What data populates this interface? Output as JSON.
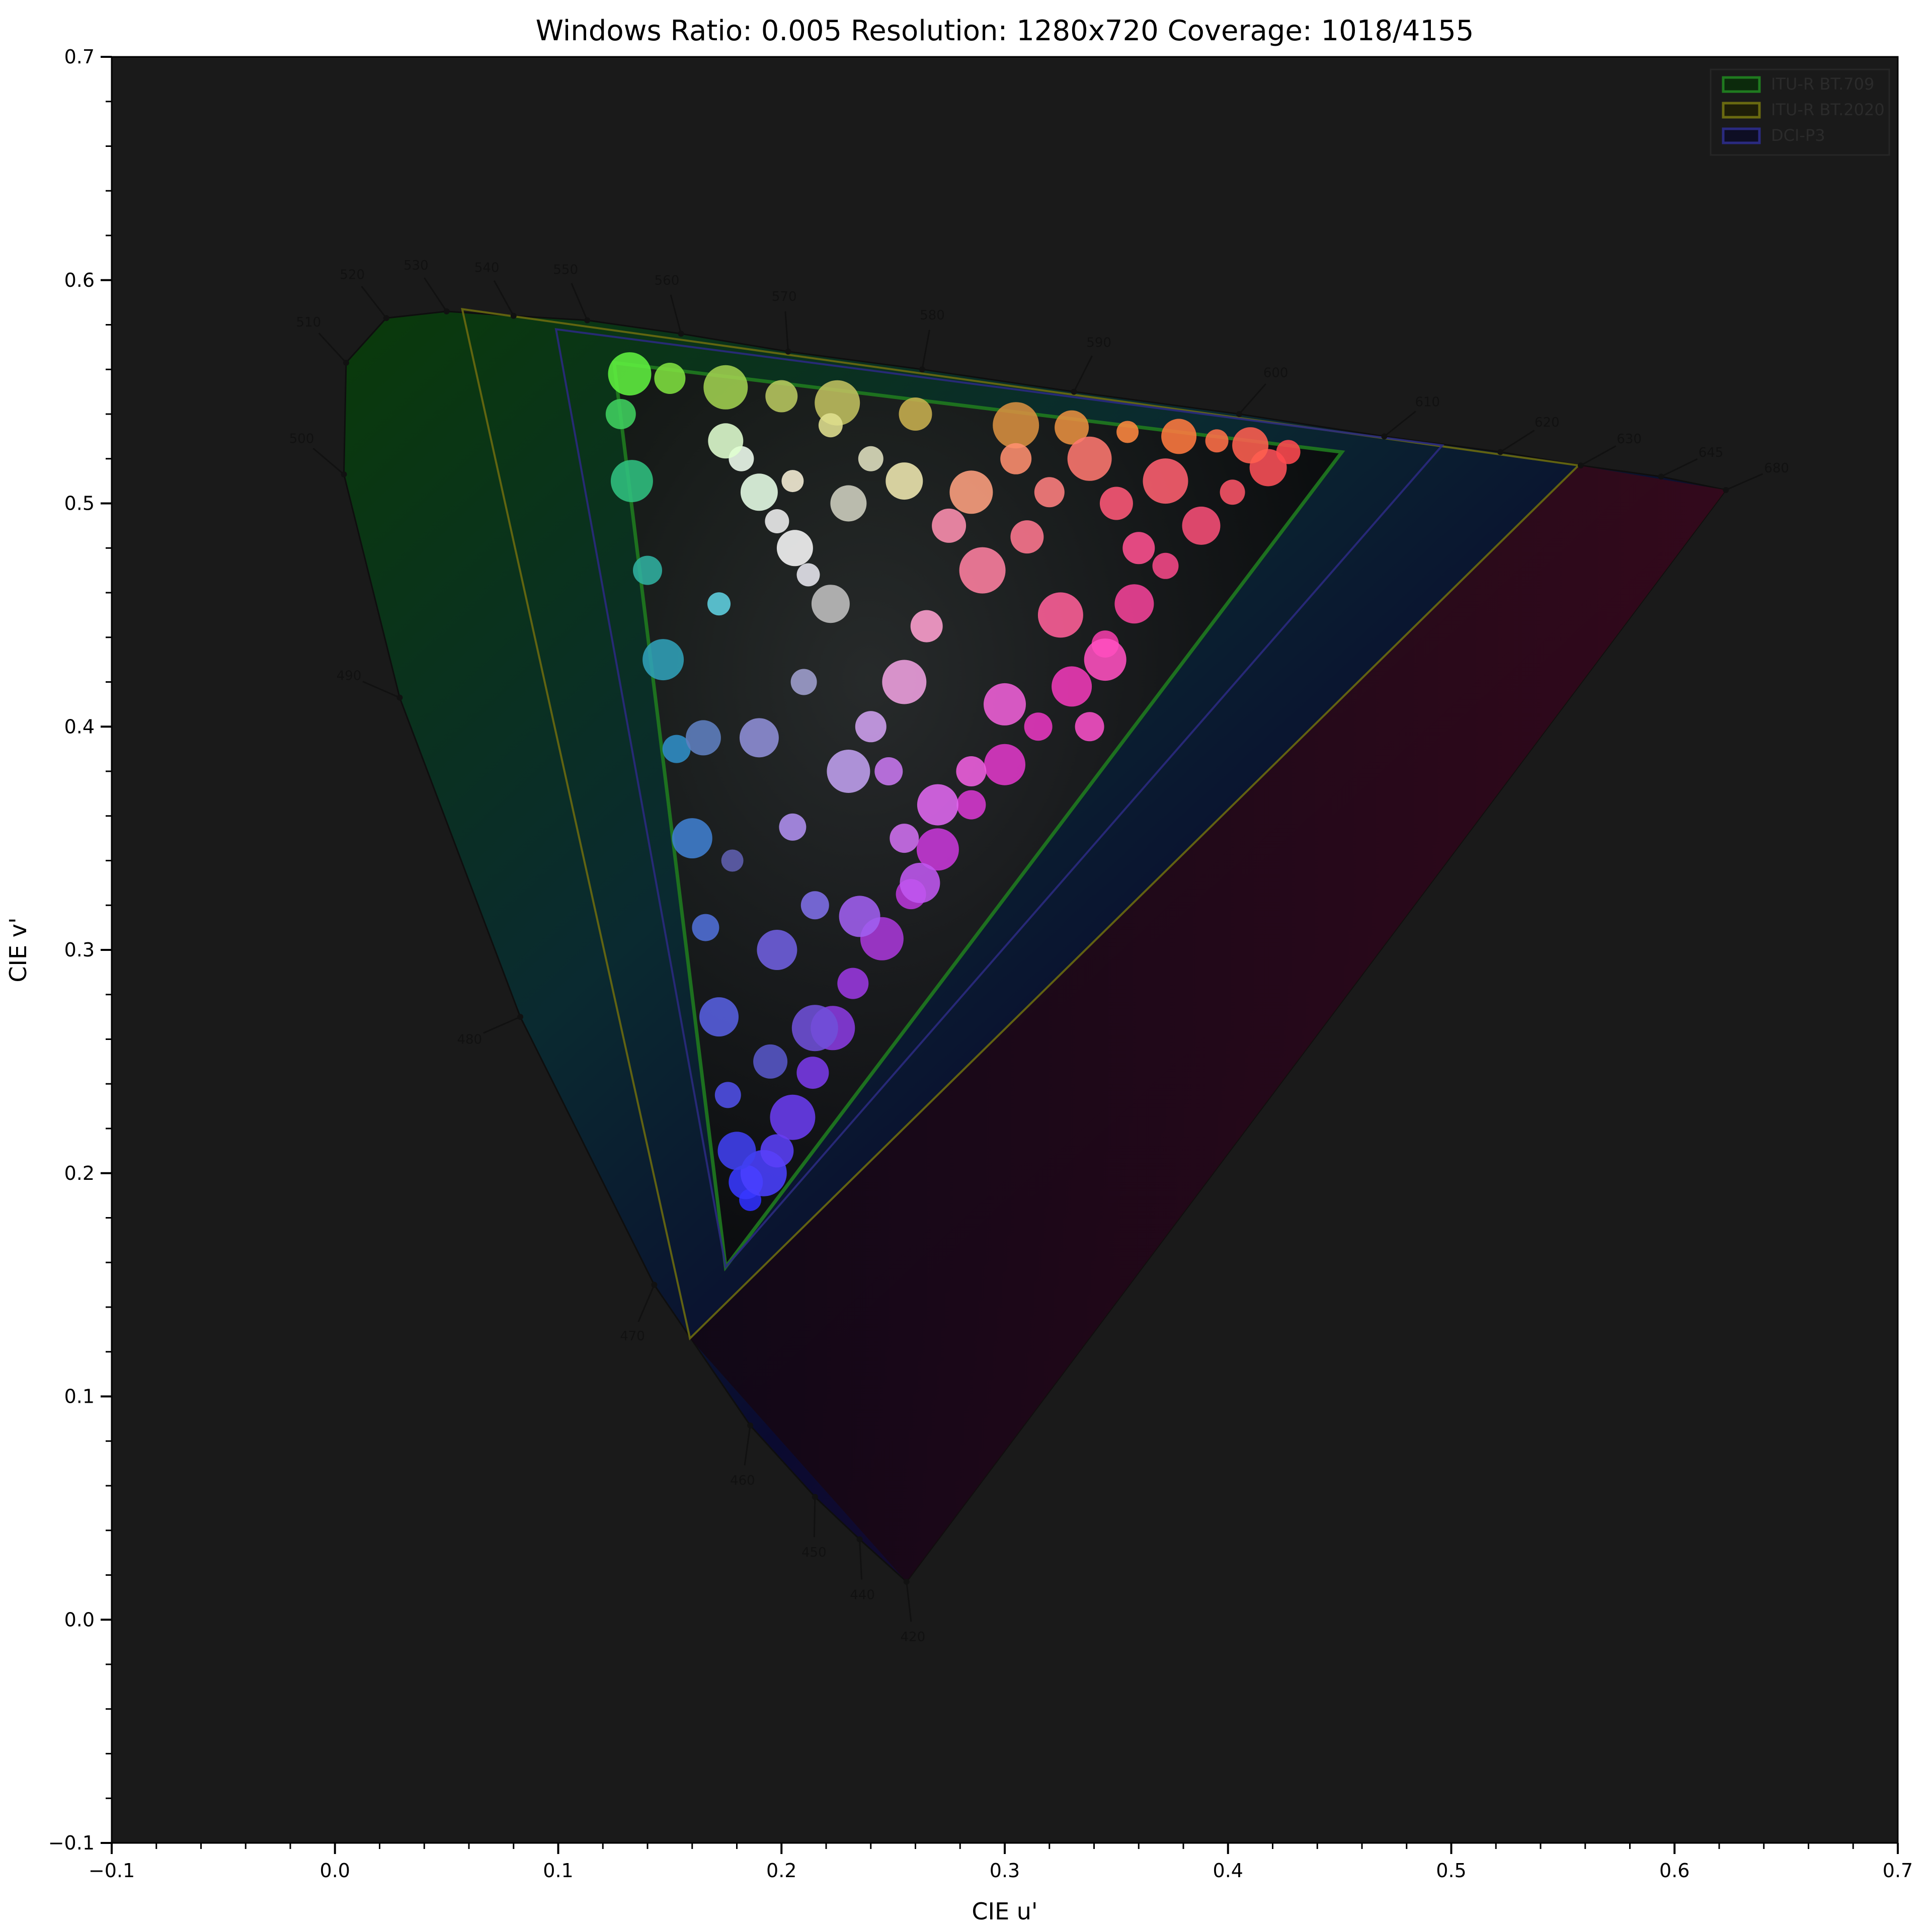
{
  "chart_data": {
    "type": "scatter",
    "title": "Windows Ratio: 0.005 Resolution: 1280x720 Coverage: 1018/4155",
    "xlabel": "CIE u'",
    "ylabel": "CIE v'",
    "xlim": [
      -0.1,
      0.7
    ],
    "ylim": [
      -0.1,
      0.7
    ],
    "xticks": [
      "−0.1",
      "0.0",
      "0.1",
      "0.2",
      "0.3",
      "0.4",
      "0.5",
      "0.6",
      "0.7"
    ],
    "yticks": [
      "−0.1",
      "0.0",
      "0.1",
      "0.2",
      "0.3",
      "0.4",
      "0.5",
      "0.6",
      "0.7"
    ],
    "background": "#1a1a1a",
    "spectral_locus": [
      {
        "nm": 420,
        "u": 0.256,
        "v": 0.017
      },
      {
        "nm": 440,
        "u": 0.235,
        "v": 0.036
      },
      {
        "nm": 450,
        "u": 0.215,
        "v": 0.055
      },
      {
        "nm": 460,
        "u": 0.186,
        "v": 0.087
      },
      {
        "nm": 470,
        "u": 0.143,
        "v": 0.15
      },
      {
        "nm": 480,
        "u": 0.083,
        "v": 0.27
      },
      {
        "nm": 490,
        "u": 0.029,
        "v": 0.413
      },
      {
        "nm": 500,
        "u": 0.004,
        "v": 0.513
      },
      {
        "nm": 510,
        "u": 0.005,
        "v": 0.563
      },
      {
        "nm": 520,
        "u": 0.023,
        "v": 0.583
      },
      {
        "nm": 530,
        "u": 0.05,
        "v": 0.586
      },
      {
        "nm": 540,
        "u": 0.08,
        "v": 0.584
      },
      {
        "nm": 550,
        "u": 0.113,
        "v": 0.582
      },
      {
        "nm": 560,
        "u": 0.155,
        "v": 0.576
      },
      {
        "nm": 570,
        "u": 0.203,
        "v": 0.568
      },
      {
        "nm": 580,
        "u": 0.263,
        "v": 0.56
      },
      {
        "nm": 590,
        "u": 0.331,
        "v": 0.55
      },
      {
        "nm": 600,
        "u": 0.405,
        "v": 0.54
      },
      {
        "nm": 610,
        "u": 0.47,
        "v": 0.53
      },
      {
        "nm": 620,
        "u": 0.522,
        "v": 0.523
      },
      {
        "nm": 630,
        "u": 0.558,
        "v": 0.517
      },
      {
        "nm": 645,
        "u": 0.594,
        "v": 0.512
      },
      {
        "nm": 680,
        "u": 0.623,
        "v": 0.506
      }
    ],
    "gamuts": [
      {
        "name": "ITU-R BT.709",
        "color": "#1f7a1f",
        "points": [
          [
            0.451,
            0.523
          ],
          [
            0.125,
            0.563
          ],
          [
            0.175,
            0.158
          ]
        ]
      },
      {
        "name": "ITU-R BT.2020",
        "color": "#6a6a10",
        "points": [
          [
            0.557,
            0.517
          ],
          [
            0.057,
            0.587
          ],
          [
            0.159,
            0.126
          ]
        ]
      },
      {
        "name": "DCI-P3",
        "color": "#2a2a80",
        "points": [
          [
            0.496,
            0.526
          ],
          [
            0.099,
            0.578
          ],
          [
            0.175,
            0.158
          ]
        ]
      }
    ],
    "legend": {
      "position": "top-right",
      "entries": [
        "ITU-R BT.709",
        "ITU-R BT.2020",
        "DCI-P3"
      ]
    },
    "points": [
      {
        "u": 0.186,
        "v": 0.188,
        "color": "#3030ff"
      },
      {
        "u": 0.184,
        "v": 0.196,
        "color": "#3838ff"
      },
      {
        "u": 0.192,
        "v": 0.2,
        "color": "#4a40ff"
      },
      {
        "u": 0.198,
        "v": 0.21,
        "color": "#5a40f8"
      },
      {
        "u": 0.205,
        "v": 0.225,
        "color": "#6a3cf0"
      },
      {
        "u": 0.214,
        "v": 0.245,
        "color": "#7a3ae8"
      },
      {
        "u": 0.223,
        "v": 0.265,
        "color": "#8a3ae0"
      },
      {
        "u": 0.232,
        "v": 0.285,
        "color": "#9a38e0"
      },
      {
        "u": 0.245,
        "v": 0.305,
        "color": "#a838d8"
      },
      {
        "u": 0.258,
        "v": 0.325,
        "color": "#b838d8"
      },
      {
        "u": 0.27,
        "v": 0.345,
        "color": "#c838d8"
      },
      {
        "u": 0.285,
        "v": 0.365,
        "color": "#d838d0"
      },
      {
        "u": 0.3,
        "v": 0.383,
        "color": "#e038c8"
      },
      {
        "u": 0.315,
        "v": 0.4,
        "color": "#e838c0"
      },
      {
        "u": 0.33,
        "v": 0.418,
        "color": "#f03ab8"
      },
      {
        "u": 0.345,
        "v": 0.437,
        "color": "#f23eaa"
      },
      {
        "u": 0.358,
        "v": 0.455,
        "color": "#f44298"
      },
      {
        "u": 0.372,
        "v": 0.472,
        "color": "#f64888"
      },
      {
        "u": 0.388,
        "v": 0.49,
        "color": "#f84e78"
      },
      {
        "u": 0.402,
        "v": 0.505,
        "color": "#fa5468"
      },
      {
        "u": 0.418,
        "v": 0.516,
        "color": "#fc5058"
      },
      {
        "u": 0.427,
        "v": 0.523,
        "color": "#ff4a50"
      },
      {
        "u": 0.41,
        "v": 0.526,
        "color": "#ff6050"
      },
      {
        "u": 0.395,
        "v": 0.528,
        "color": "#ff7048"
      },
      {
        "u": 0.378,
        "v": 0.53,
        "color": "#ff7a40"
      },
      {
        "u": 0.355,
        "v": 0.532,
        "color": "#ff8840"
      },
      {
        "u": 0.33,
        "v": 0.534,
        "color": "#e89040"
      },
      {
        "u": 0.305,
        "v": 0.535,
        "color": "#d89040"
      },
      {
        "u": 0.26,
        "v": 0.54,
        "color": "#c8b050"
      },
      {
        "u": 0.225,
        "v": 0.545,
        "color": "#c0c060"
      },
      {
        "u": 0.2,
        "v": 0.548,
        "color": "#b8c860"
      },
      {
        "u": 0.175,
        "v": 0.552,
        "color": "#a0d050"
      },
      {
        "u": 0.15,
        "v": 0.556,
        "color": "#80e040"
      },
      {
        "u": 0.132,
        "v": 0.558,
        "color": "#60f040"
      },
      {
        "u": 0.128,
        "v": 0.54,
        "color": "#40d060"
      },
      {
        "u": 0.133,
        "v": 0.51,
        "color": "#30c080"
      },
      {
        "u": 0.14,
        "v": 0.47,
        "color": "#30b0a0"
      },
      {
        "u": 0.147,
        "v": 0.43,
        "color": "#30a0b8"
      },
      {
        "u": 0.153,
        "v": 0.39,
        "color": "#3090c8"
      },
      {
        "u": 0.16,
        "v": 0.35,
        "color": "#4080d0"
      },
      {
        "u": 0.166,
        "v": 0.31,
        "color": "#5070d8"
      },
      {
        "u": 0.172,
        "v": 0.27,
        "color": "#5860e0"
      },
      {
        "u": 0.176,
        "v": 0.235,
        "color": "#5050e8"
      },
      {
        "u": 0.18,
        "v": 0.21,
        "color": "#4040f0"
      },
      {
        "u": 0.182,
        "v": 0.52,
        "color": "#f0fff0"
      },
      {
        "u": 0.19,
        "v": 0.505,
        "color": "#e8ffe8"
      },
      {
        "u": 0.198,
        "v": 0.492,
        "color": "#f0f0f0"
      },
      {
        "u": 0.206,
        "v": 0.48,
        "color": "#f8f8f8"
      },
      {
        "u": 0.212,
        "v": 0.468,
        "color": "#e8e8f0"
      },
      {
        "u": 0.175,
        "v": 0.528,
        "color": "#e0ffd0"
      },
      {
        "u": 0.205,
        "v": 0.51,
        "color": "#f8f0d8"
      },
      {
        "u": 0.275,
        "v": 0.49,
        "color": "#ff90b0"
      },
      {
        "u": 0.29,
        "v": 0.47,
        "color": "#ff80a0"
      },
      {
        "u": 0.31,
        "v": 0.485,
        "color": "#ff7890"
      },
      {
        "u": 0.325,
        "v": 0.45,
        "color": "#ff6098"
      },
      {
        "u": 0.265,
        "v": 0.445,
        "color": "#ffa0d0"
      },
      {
        "u": 0.255,
        "v": 0.42,
        "color": "#f0a0e0"
      },
      {
        "u": 0.24,
        "v": 0.4,
        "color": "#d0a0f0"
      },
      {
        "u": 0.23,
        "v": 0.38,
        "color": "#c0a0f0"
      },
      {
        "u": 0.285,
        "v": 0.38,
        "color": "#f060e0"
      },
      {
        "u": 0.3,
        "v": 0.41,
        "color": "#f060d8"
      },
      {
        "u": 0.255,
        "v": 0.35,
        "color": "#d070f0"
      },
      {
        "u": 0.235,
        "v": 0.315,
        "color": "#a060f0"
      },
      {
        "u": 0.215,
        "v": 0.32,
        "color": "#8070e8"
      },
      {
        "u": 0.198,
        "v": 0.3,
        "color": "#7060e0"
      },
      {
        "u": 0.205,
        "v": 0.355,
        "color": "#b090f0"
      },
      {
        "u": 0.19,
        "v": 0.395,
        "color": "#9090d8"
      },
      {
        "u": 0.21,
        "v": 0.42,
        "color": "#a0a0d0"
      },
      {
        "u": 0.222,
        "v": 0.455,
        "color": "#c0c0c0"
      },
      {
        "u": 0.24,
        "v": 0.52,
        "color": "#e0e0c0"
      },
      {
        "u": 0.255,
        "v": 0.51,
        "color": "#f0e8b0"
      },
      {
        "u": 0.222,
        "v": 0.535,
        "color": "#e0e090"
      },
      {
        "u": 0.23,
        "v": 0.5,
        "color": "#d0d0c0"
      },
      {
        "u": 0.172,
        "v": 0.455,
        "color": "#60d0e0"
      },
      {
        "u": 0.165,
        "v": 0.395,
        "color": "#6080c0"
      },
      {
        "u": 0.178,
        "v": 0.34,
        "color": "#6060b0"
      },
      {
        "u": 0.195,
        "v": 0.25,
        "color": "#5858c8"
      },
      {
        "u": 0.215,
        "v": 0.265,
        "color": "#7050d8"
      },
      {
        "u": 0.35,
        "v": 0.5,
        "color": "#ff5878"
      },
      {
        "u": 0.372,
        "v": 0.51,
        "color": "#ff6070"
      },
      {
        "u": 0.36,
        "v": 0.48,
        "color": "#ff5090"
      },
      {
        "u": 0.338,
        "v": 0.52,
        "color": "#ff7870"
      },
      {
        "u": 0.305,
        "v": 0.52,
        "color": "#ff9070"
      },
      {
        "u": 0.285,
        "v": 0.505,
        "color": "#ffa080"
      },
      {
        "u": 0.32,
        "v": 0.505,
        "color": "#ff8080"
      },
      {
        "u": 0.345,
        "v": 0.43,
        "color": "#ff50c0"
      },
      {
        "u": 0.338,
        "v": 0.4,
        "color": "#f850c8"
      },
      {
        "u": 0.27,
        "v": 0.365,
        "color": "#e068f0"
      },
      {
        "u": 0.248,
        "v": 0.38,
        "color": "#c878f0"
      },
      {
        "u": 0.262,
        "v": 0.33,
        "color": "#c058f0"
      }
    ]
  }
}
